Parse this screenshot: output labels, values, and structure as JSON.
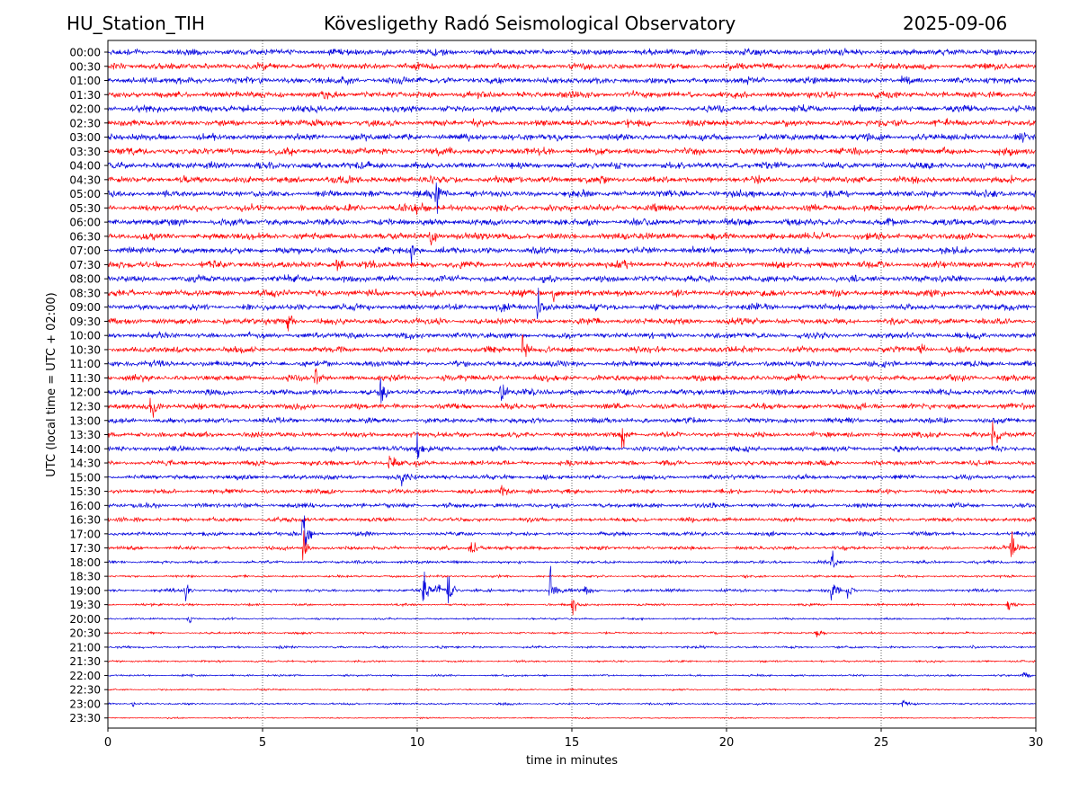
{
  "header": {
    "station": "HU_Station_TIH",
    "observatory": "Kövesligethy Radó Seismological Observatory",
    "date": "2025-09-06"
  },
  "chart_data": {
    "type": "line",
    "title": "Kövesligethy Radó Seismological Observatory",
    "xlabel": "time in minutes",
    "ylabel": "UTC (local time = UTC + 02:00)",
    "xlim": [
      0,
      30
    ],
    "x_ticks": [
      "0",
      "5",
      "10",
      "15",
      "20",
      "25",
      "30"
    ],
    "x_tick_values": [
      0,
      5,
      10,
      15,
      20,
      25,
      30
    ],
    "grid": "vertical dotted lines at x ticks",
    "colors": {
      "even_rows": "#0000dd",
      "odd_rows": "#ff0000"
    },
    "rows": [
      "00:00",
      "00:30",
      "01:00",
      "01:30",
      "02:00",
      "02:30",
      "03:00",
      "03:30",
      "04:00",
      "04:30",
      "05:00",
      "05:30",
      "06:00",
      "06:30",
      "07:00",
      "07:30",
      "08:00",
      "08:30",
      "09:00",
      "09:30",
      "10:00",
      "10:30",
      "11:00",
      "11:30",
      "12:00",
      "12:30",
      "13:00",
      "13:30",
      "14:00",
      "14:30",
      "15:00",
      "15:30",
      "16:00",
      "16:30",
      "17:00",
      "17:30",
      "18:00",
      "18:30",
      "19:00",
      "19:30",
      "20:00",
      "20:30",
      "21:00",
      "21:30",
      "22:00",
      "22:30",
      "23:00",
      "23:30"
    ],
    "noise_level": [
      1.0,
      1.0,
      1.0,
      1.0,
      1.0,
      1.0,
      1.0,
      1.0,
      1.0,
      1.0,
      1.0,
      1.0,
      1.0,
      1.0,
      1.0,
      1.0,
      1.0,
      1.0,
      0.95,
      0.9,
      0.9,
      0.9,
      0.9,
      0.9,
      0.85,
      0.85,
      0.8,
      0.8,
      0.8,
      0.75,
      0.7,
      0.7,
      0.7,
      0.65,
      0.6,
      0.55,
      0.45,
      0.35,
      0.45,
      0.35,
      0.3,
      0.3,
      0.35,
      0.3,
      0.3,
      0.25,
      0.3,
      0.2
    ],
    "events": [
      {
        "row": "05:00",
        "minute": 10.6,
        "amplitude": 2.2
      },
      {
        "row": "05:30",
        "minute": 9.9,
        "amplitude": 1.4
      },
      {
        "row": "06:30",
        "minute": 10.4,
        "amplitude": 1.6
      },
      {
        "row": "07:00",
        "minute": 9.8,
        "amplitude": 1.3
      },
      {
        "row": "07:30",
        "minute": 7.4,
        "amplitude": 1.3
      },
      {
        "row": "08:30",
        "minute": 14.4,
        "amplitude": 1.5
      },
      {
        "row": "09:00",
        "minute": 13.9,
        "amplitude": 1.6
      },
      {
        "row": "09:30",
        "minute": 5.8,
        "amplitude": 1.4
      },
      {
        "row": "10:30",
        "minute": 13.4,
        "amplitude": 1.5
      },
      {
        "row": "10:30",
        "minute": 26.2,
        "amplitude": 1.5
      },
      {
        "row": "11:30",
        "minute": 6.7,
        "amplitude": 1.3
      },
      {
        "row": "12:00",
        "minute": 8.8,
        "amplitude": 1.8
      },
      {
        "row": "12:00",
        "minute": 12.7,
        "amplitude": 1.8
      },
      {
        "row": "12:30",
        "minute": 1.4,
        "amplitude": 2.2
      },
      {
        "row": "13:30",
        "minute": 16.6,
        "amplitude": 2.0
      },
      {
        "row": "13:30",
        "minute": 28.6,
        "amplitude": 2.2
      },
      {
        "row": "14:00",
        "minute": 10.0,
        "amplitude": 1.2
      },
      {
        "row": "14:30",
        "minute": 9.1,
        "amplitude": 1.2
      },
      {
        "row": "15:00",
        "minute": 9.5,
        "amplitude": 1.1
      },
      {
        "row": "15:30",
        "minute": 12.7,
        "amplitude": 1.4
      },
      {
        "row": "17:00",
        "minute": 6.3,
        "amplitude": 3.0
      },
      {
        "row": "17:30",
        "minute": 6.3,
        "amplitude": 1.8
      },
      {
        "row": "17:30",
        "minute": 11.7,
        "amplitude": 1.7
      },
      {
        "row": "17:30",
        "minute": 29.2,
        "amplitude": 1.9
      },
      {
        "row": "18:00",
        "minute": 23.4,
        "amplitude": 1.2
      },
      {
        "row": "19:00",
        "minute": 2.5,
        "amplitude": 0.9
      },
      {
        "row": "19:00",
        "minute": 10.2,
        "amplitude": 2.4
      },
      {
        "row": "19:00",
        "minute": 10.6,
        "amplitude": 1.3
      },
      {
        "row": "19:00",
        "minute": 11.0,
        "amplitude": 1.9
      },
      {
        "row": "19:00",
        "minute": 14.3,
        "amplitude": 2.6
      },
      {
        "row": "19:00",
        "minute": 15.4,
        "amplitude": 1.0
      },
      {
        "row": "19:00",
        "minute": 23.4,
        "amplitude": 1.9
      },
      {
        "row": "19:00",
        "minute": 23.9,
        "amplitude": 1.0
      },
      {
        "row": "19:30",
        "minute": 15.0,
        "amplitude": 1.4
      },
      {
        "row": "19:30",
        "minute": 29.1,
        "amplitude": 0.9
      },
      {
        "row": "20:00",
        "minute": 2.6,
        "amplitude": 0.6
      },
      {
        "row": "20:30",
        "minute": 22.9,
        "amplitude": 0.5
      },
      {
        "row": "21:00",
        "minute": 27.9,
        "amplitude": 0.4
      },
      {
        "row": "22:00",
        "minute": 29.6,
        "amplitude": 0.4
      },
      {
        "row": "23:00",
        "minute": 0.8,
        "amplitude": 0.4
      },
      {
        "row": "23:00",
        "minute": 25.7,
        "amplitude": 0.5
      }
    ]
  }
}
